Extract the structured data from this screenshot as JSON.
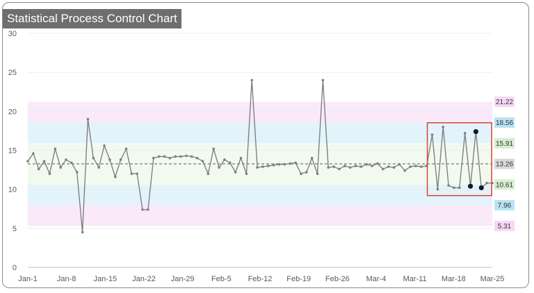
{
  "chart_data": {
    "type": "line",
    "title": "Statistical Process Control Chart",
    "xlabel": "",
    "ylabel": "",
    "ylim": [
      0,
      30
    ],
    "y_ticks": [
      0,
      5,
      10,
      15,
      20,
      25,
      30
    ],
    "x_tick_labels": [
      "Jan-1",
      "Jan-8",
      "Jan-15",
      "Jan-22",
      "Jan-29",
      "Feb-5",
      "Feb-12",
      "Feb-19",
      "Feb-26",
      "Mar-4",
      "Mar-11",
      "Mar-18",
      "Mar-25"
    ],
    "grid": "horizontal",
    "series": [
      {
        "values": [
          13.6,
          14.6,
          12.6,
          13.6,
          12.0,
          15.2,
          12.8,
          13.8,
          13.4,
          12.2,
          4.5,
          19.0,
          14.0,
          12.8,
          15.6,
          13.8,
          11.6,
          13.8,
          15.2,
          12.0,
          12.0,
          7.4,
          7.4,
          14.0,
          14.2,
          14.2,
          14.0,
          14.2,
          14.2,
          14.3,
          14.2,
          14.0,
          13.6,
          12.0,
          15.2,
          12.8,
          13.8,
          13.4,
          12.2,
          14.0,
          12.0,
          24.0,
          12.8,
          12.9,
          13.0,
          13.1,
          13.2,
          13.2,
          13.3,
          13.4,
          12.0,
          12.2,
          14.0,
          12.0,
          24.0,
          12.8,
          12.9,
          12.6,
          13.0,
          12.8,
          13.0,
          12.9,
          13.2,
          13.0,
          13.3,
          12.6,
          12.9,
          12.8,
          13.2,
          12.4,
          12.9,
          13.0,
          12.9,
          13.0,
          17.0,
          10.0,
          18.0,
          10.5,
          10.2,
          10.2,
          17.2,
          10.4,
          17.4,
          10.2,
          10.8,
          10.8
        ],
        "color": "#808080"
      }
    ],
    "highlighted_points": [
      {
        "index": 81,
        "value": 10.4
      },
      {
        "index": 82,
        "value": 17.4
      },
      {
        "index": 83,
        "value": 10.2
      }
    ],
    "highlight_box": {
      "from_index": 74,
      "to_index": 84
    },
    "control_limits": [
      {
        "value": 21.22,
        "label": "21.22",
        "color": "#f5d8f5"
      },
      {
        "value": 18.56,
        "label": "18.56",
        "color": "#b9e3f5"
      },
      {
        "value": 15.91,
        "label": "15.91",
        "color": "#d4efcf"
      },
      {
        "value": 13.26,
        "label": "13.26",
        "color": "#d9d9d9"
      },
      {
        "value": 10.61,
        "label": "10.61",
        "color": "#d4efcf"
      },
      {
        "value": 7.96,
        "label": "7.96",
        "color": "#b9e3f5"
      },
      {
        "value": 5.31,
        "label": "5.31",
        "color": "#f5d8f5"
      }
    ],
    "zone_colors": {
      "outer": "#f9e9f9",
      "middle": "#e3f3fb",
      "inner": "#f2faef"
    },
    "centerline": 13.26,
    "highlight_color": "#d9423a",
    "point_color": "#0d1b2a"
  }
}
